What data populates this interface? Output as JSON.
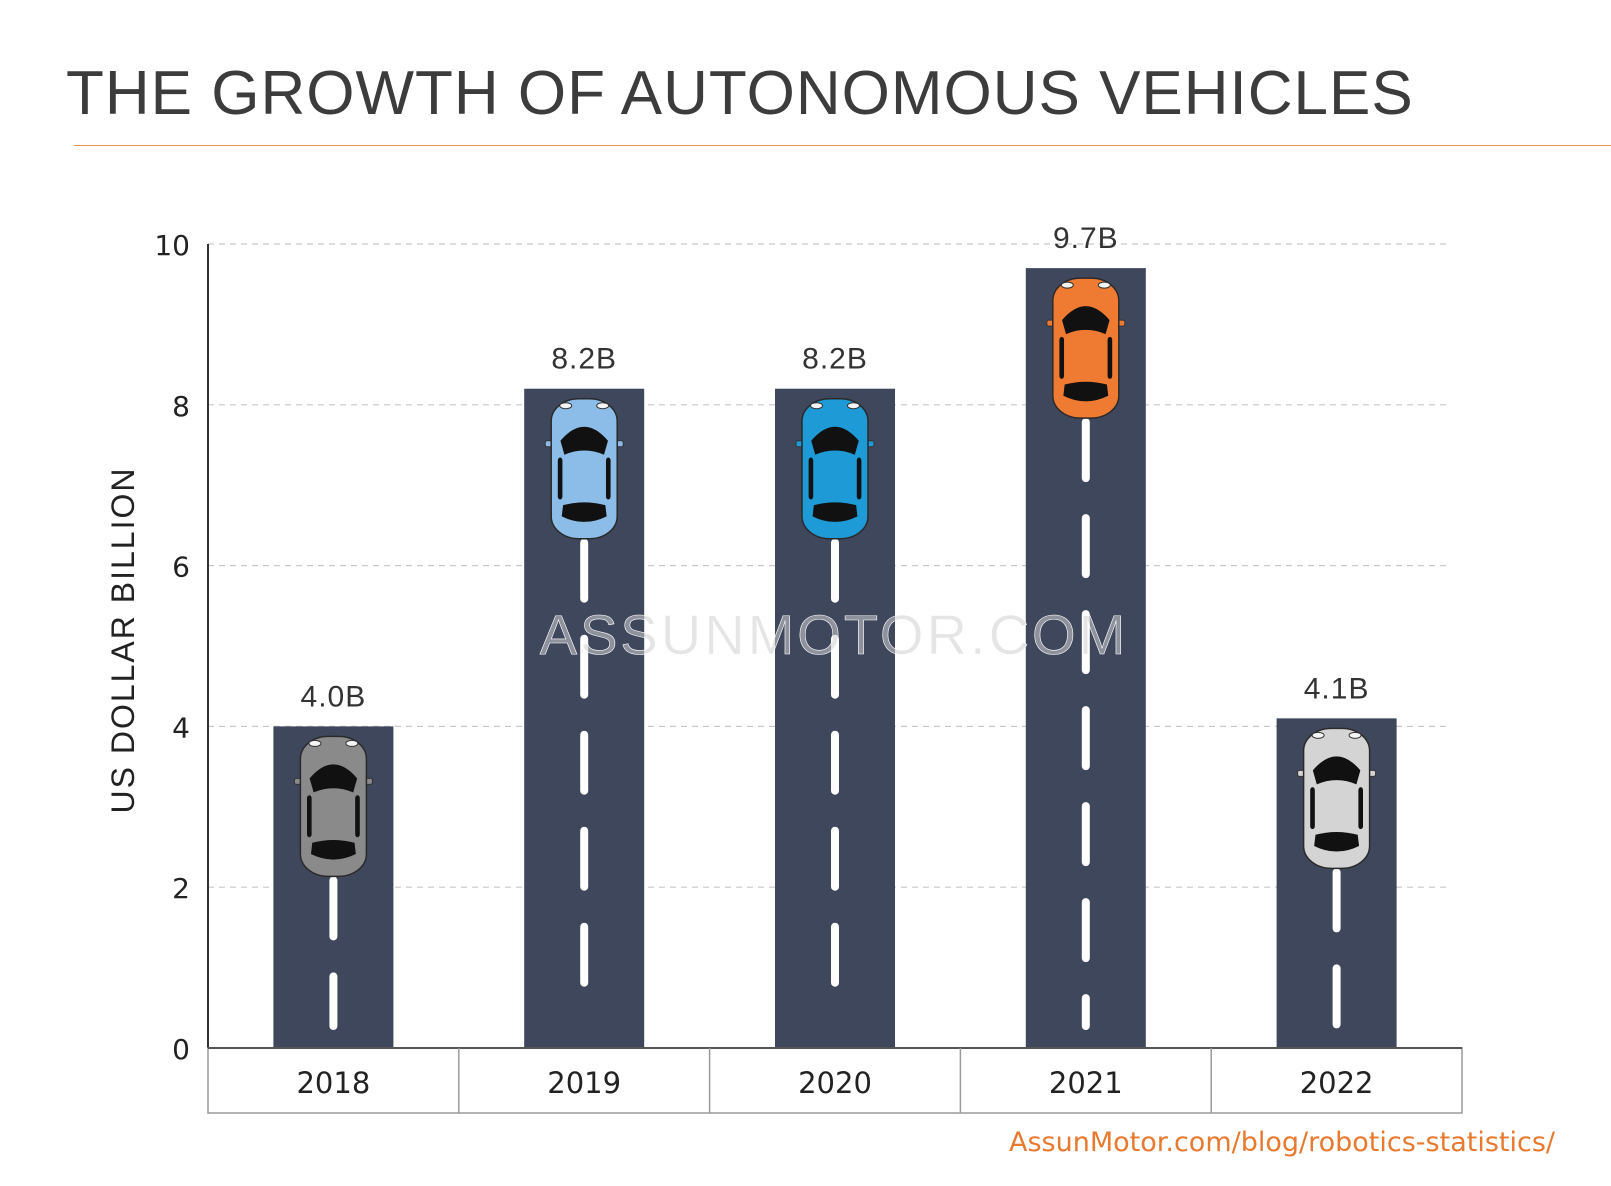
{
  "chart_data": {
    "type": "bar",
    "title": "THE GROWTH OF AUTONOMOUS VEHICLES",
    "ylabel": "US DOLLAR BILLION",
    "xlabel": "",
    "ylim": [
      0,
      10
    ],
    "yticks": [
      "0",
      "2",
      "4",
      "6",
      "8",
      "10"
    ],
    "categories": [
      "2018",
      "2019",
      "2020",
      "2021",
      "2022"
    ],
    "values": [
      4.0,
      8.2,
      8.2,
      9.7,
      4.1
    ],
    "data_labels": [
      "4.0B",
      "8.2B",
      "8.2B",
      "9.7B",
      "4.1B"
    ],
    "grid": "horizontal-dashed",
    "legend": "none",
    "watermark": "ASSUNMOTOR.COM",
    "bar_color": "#3f475d",
    "car_colors": [
      "#8a8a8a",
      "#8cbde8",
      "#1e9ad6",
      "#ef7a32",
      "#d4d4d4"
    ]
  },
  "source": "AssunMotor.com/blog/robotics-statistics/"
}
